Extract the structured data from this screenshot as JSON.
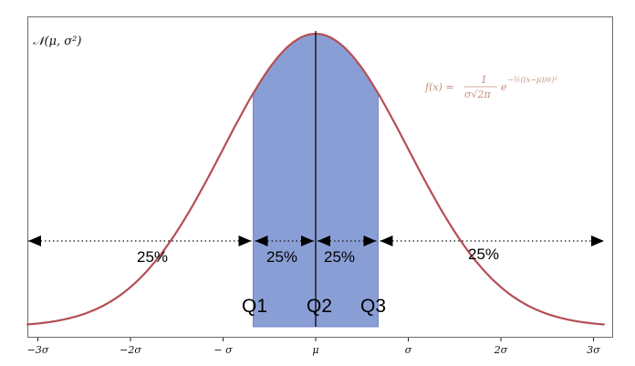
{
  "diagram": {
    "distribution_label": "𝒩(μ, σ²)",
    "formula": {
      "lhs": "f(x) =",
      "numerator": "1",
      "denominator": "σ√2π",
      "exp_base": "e",
      "exponent": "−½((x−μ)/σ)²"
    },
    "segments": [
      {
        "label": "25%"
      },
      {
        "label": "25%"
      },
      {
        "label": "25%"
      },
      {
        "label": "25%"
      }
    ],
    "quartiles": [
      {
        "label": "Q1",
        "z": -0.6745
      },
      {
        "label": "Q2",
        "z": 0
      },
      {
        "label": "Q3",
        "z": 0.6745
      }
    ],
    "x_ticks": [
      {
        "z": -3,
        "label": "−3σ"
      },
      {
        "z": -2,
        "label": "−2σ"
      },
      {
        "z": -1,
        "label": "− σ"
      },
      {
        "z": 0,
        "label": "μ"
      },
      {
        "z": 1,
        "label": "σ"
      },
      {
        "z": 2,
        "label": "2σ"
      },
      {
        "z": 3,
        "label": "3σ"
      }
    ],
    "colors": {
      "curve": "#b44e55",
      "iqr_fill": "#8a9ed6",
      "formula": "#c48f80"
    }
  }
}
